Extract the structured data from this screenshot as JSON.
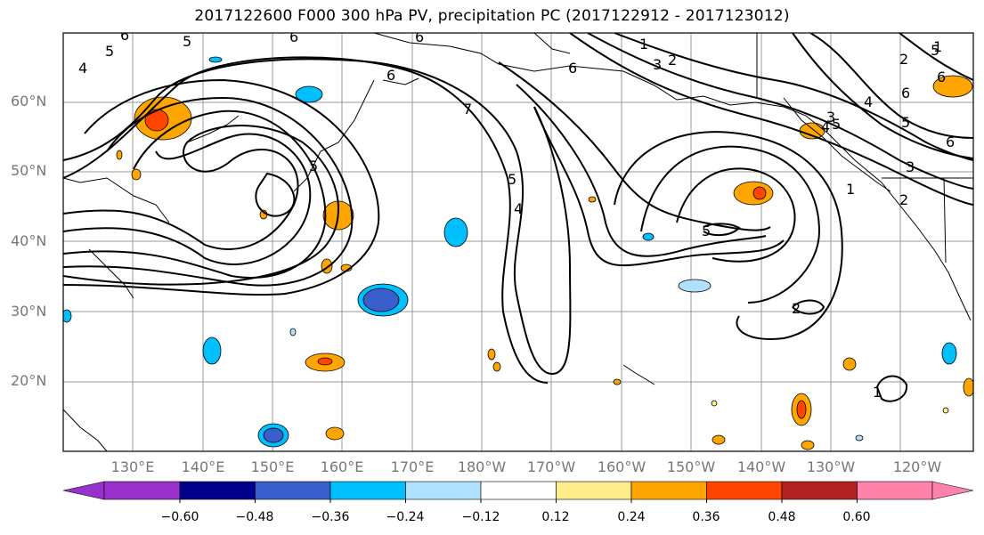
{
  "title": "2017122600 F000 300 hPa PV, precipitation PC (2017122912 - 2017123012)",
  "lat_labels": [
    "60°N",
    "50°N",
    "40°N",
    "30°N",
    "20°N"
  ],
  "lon_labels": [
    "130°E",
    "140°E",
    "150°E",
    "160°E",
    "170°E",
    "180°W",
    "170°W",
    "160°W",
    "150°W",
    "140°W",
    "130°W",
    "120°W"
  ],
  "colorbar": {
    "ticks": [
      "−0.60",
      "−0.48",
      "−0.36",
      "−0.24",
      "−0.12",
      "0.12",
      "0.24",
      "0.36",
      "0.48",
      "0.60"
    ],
    "colors": [
      "#9932CC",
      "#00008B",
      "#3A5FCD",
      "#00BFFF",
      "#B0E2FF",
      "#FFFFFF",
      "#FFEC8B",
      "#FFA500",
      "#FF4500",
      "#B22222",
      "#FF82AB"
    ]
  },
  "contour_labels": [
    "5",
    "6",
    "6",
    "5",
    "6",
    "4",
    "6",
    "5",
    "5",
    "7",
    "6",
    "1",
    "3",
    "2",
    "4",
    "5",
    "6",
    "3",
    "5",
    "4",
    "4",
    "5",
    "6",
    "5",
    "2",
    "2",
    "1",
    "1",
    "2",
    "3",
    "6",
    "1"
  ]
}
